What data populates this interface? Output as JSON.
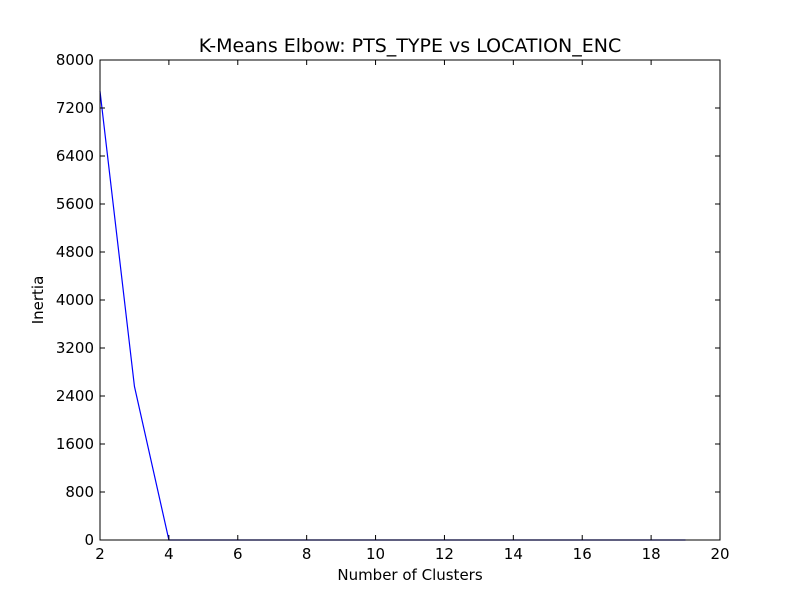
{
  "chart_data": {
    "type": "line",
    "title": "K-Means Elbow: PTS_TYPE vs LOCATION_ENC",
    "xlabel": "Number of Clusters",
    "ylabel": "Inertia",
    "xlim": [
      2,
      20
    ],
    "ylim": [
      0,
      8000
    ],
    "xticks": [
      2,
      4,
      6,
      8,
      10,
      12,
      14,
      16,
      18,
      20
    ],
    "yticks": [
      0,
      800,
      1600,
      2400,
      3200,
      4000,
      4800,
      5600,
      6400,
      7200,
      8000
    ],
    "grid": false,
    "series": [
      {
        "color": "#0000ff",
        "x": [
          2,
          3,
          4,
          5,
          6,
          7,
          8,
          9,
          10,
          11,
          12,
          13,
          14,
          15,
          16,
          17,
          18,
          19
        ],
        "y": [
          7480,
          2560,
          0,
          0,
          0,
          0,
          0,
          0,
          0,
          0,
          0,
          0,
          0,
          0,
          0,
          0,
          0,
          0
        ]
      }
    ]
  }
}
